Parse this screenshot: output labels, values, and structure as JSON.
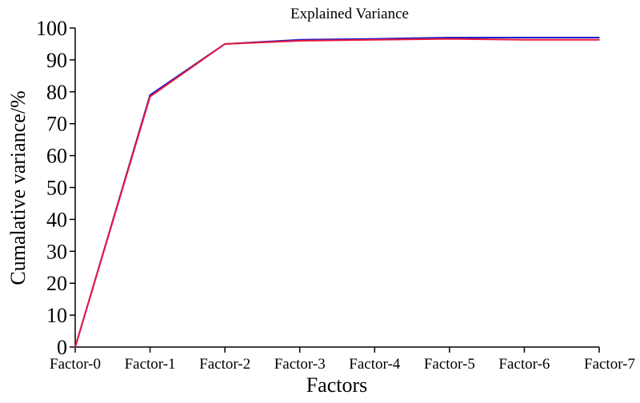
{
  "chart_data": {
    "type": "line",
    "title": "Explained Variance",
    "xlabel": "Factors",
    "ylabel": "Cumalative variance/%",
    "categories": [
      "Factor-0",
      "Factor-1",
      "Factor-2",
      "Factor-3",
      "Factor-4",
      "Factor-5",
      "Factor-6",
      "Factor-7"
    ],
    "ylim": [
      0,
      100
    ],
    "yticks": [
      "0",
      "10",
      "20",
      "30",
      "40",
      "50",
      "60",
      "70",
      "80",
      "90",
      "100"
    ],
    "grid": false,
    "series": [
      {
        "color": "#1f1fc8",
        "values": [
          0,
          79,
          95,
          96.3,
          96.6,
          97,
          97,
          97
        ]
      },
      {
        "color": "#e8183c",
        "values": [
          0,
          78.5,
          95,
          96,
          96.3,
          96.6,
          96.3,
          96.3
        ]
      }
    ]
  }
}
